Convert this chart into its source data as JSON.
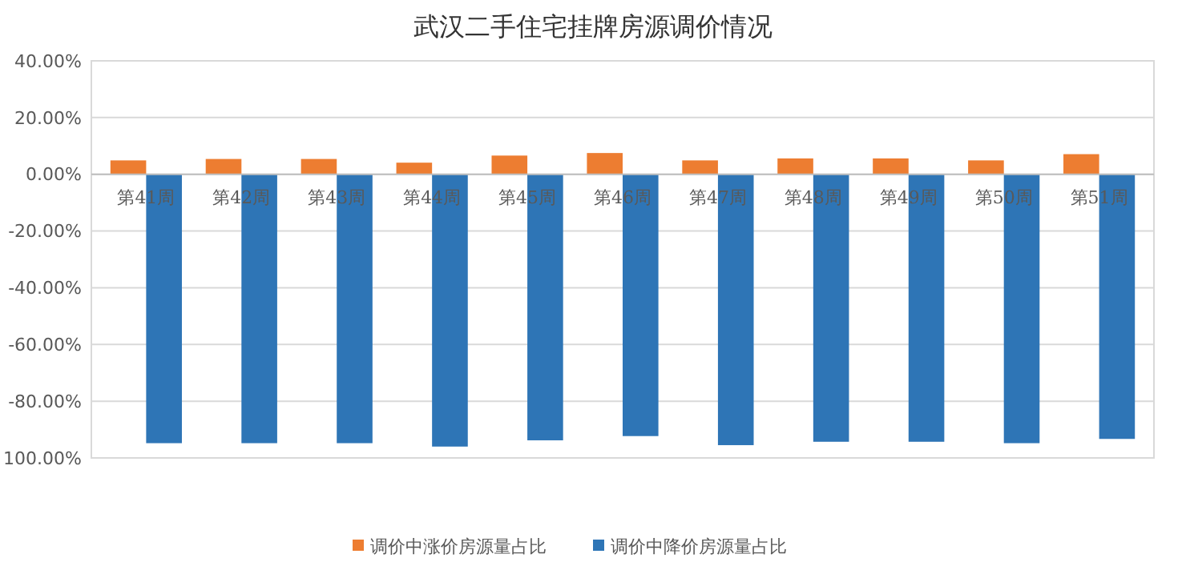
{
  "chart_data": {
    "type": "bar",
    "title": "武汉二手住宅挂牌房源调价情况",
    "categories": [
      "第41周",
      "第42周",
      "第43周",
      "第44周",
      "第45周",
      "第46周",
      "第47周",
      "第48周",
      "第49周",
      "第50周",
      "第51周"
    ],
    "series": [
      {
        "name": "调价中涨价房源量占比",
        "color": "#ed7d31",
        "values": [
          4.9,
          5.4,
          5.4,
          4.1,
          6.6,
          7.5,
          4.9,
          5.6,
          5.6,
          4.9,
          7.1
        ]
      },
      {
        "name": "调价中降价房源量占比",
        "color": "#2e75b6",
        "values": [
          -94.8,
          -94.8,
          -94.8,
          -96.0,
          -93.8,
          -92.3,
          -95.5,
          -94.3,
          -94.3,
          -94.8,
          -93.3
        ]
      }
    ],
    "ylim": [
      -100,
      40
    ],
    "yticks": [
      {
        "value": -100,
        "label": "100.00%"
      },
      {
        "value": -80,
        "label": "-80.00%"
      },
      {
        "value": -60,
        "label": "-60.00%"
      },
      {
        "value": -40,
        "label": "-40.00%"
      },
      {
        "value": -20,
        "label": "-20.00%"
      },
      {
        "value": 0,
        "label": "0.00%"
      },
      {
        "value": 20,
        "label": "20.00%"
      },
      {
        "value": 40,
        "label": "40.00%"
      }
    ],
    "grid": "y",
    "legend": "bottom"
  }
}
